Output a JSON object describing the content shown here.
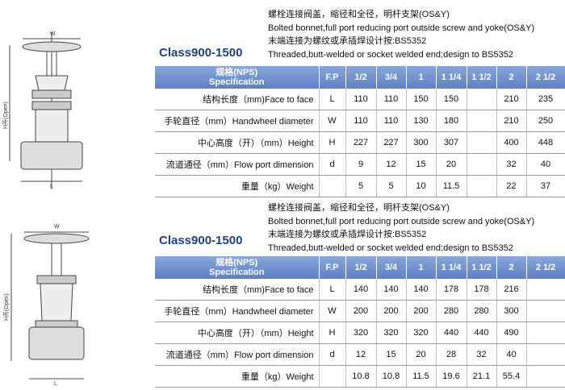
{
  "sections": [
    {
      "figure": {
        "width_label": "W",
        "height_label": "H开(Open)",
        "length_label": "L"
      },
      "description": [
        "螺栓连接阀盖，缩径和全径，明杆支架(OS&Y)",
        "Bolted bonnet,full port reducing port outside screw and yoke(OS&Y)",
        "末端连接为螺纹或承插焊设计按:BS5352",
        "Threaded,butt-welded or socket welded end;design to BS5352"
      ],
      "class_title": "Class900-1500",
      "table": {
        "spec_header": [
          "规格(NPS)",
          "Specification"
        ],
        "fp_header": "F.P",
        "sizes": [
          "1/2",
          "3/4",
          "1",
          "1 1/4",
          "1 1/2",
          "2",
          "2 1/2"
        ],
        "rows": [
          {
            "label": "结构长度（mm)Face to face",
            "symbol": "L",
            "values": [
              110,
              110,
              150,
              150,
              null,
              210,
              235
            ]
          },
          {
            "label": "手轮直径（mm）Handwheel diameter",
            "symbol": "W",
            "values": [
              110,
              110,
              130,
              180,
              null,
              210,
              250
            ]
          },
          {
            "label": "中心高度（开）（mm）Height",
            "symbol": "H",
            "values": [
              227,
              227,
              300,
              307,
              null,
              400,
              448
            ]
          },
          {
            "label": "流道通径（mm）Flow port dimension",
            "symbol": "d",
            "values": [
              9,
              12,
              15,
              20,
              null,
              32,
              40
            ]
          },
          {
            "label": "重量（kg）Weight",
            "symbol": null,
            "values": [
              5,
              5,
              10,
              11.5,
              null,
              22,
              37
            ]
          }
        ]
      }
    },
    {
      "figure": {
        "width_label": "W",
        "height_label": "H开(Open)",
        "length_label": "L"
      },
      "description": [
        "螺栓连接阀盖，缩径和全径，明杆支架(OS&Y)",
        "Bolted bonnet,full port reducing port outside screw and yoke(OS&Y)",
        "末端连接为螺纹或承插焊设计按:BS5352",
        "Threaded,butt-welded or socket welded end;design to BS5352"
      ],
      "class_title": "Class900-1500",
      "table": {
        "spec_header": [
          "规格(NPS)",
          "Specification"
        ],
        "fp_header": "F.P",
        "sizes": [
          "1/2",
          "3/4",
          "1",
          "1 1/4",
          "1 1/2",
          "2",
          "2 1/2"
        ],
        "rows": [
          {
            "label": "结构长度（mm)Face to face",
            "symbol": "L",
            "values": [
              140,
              140,
              140,
              178,
              178,
              216,
              null
            ]
          },
          {
            "label": "手轮直径（mm）Handwheel diameter",
            "symbol": "W",
            "values": [
              200,
              200,
              200,
              280,
              280,
              300,
              null
            ]
          },
          {
            "label": "中心高度（开）（mm）Height",
            "symbol": "H",
            "values": [
              320,
              320,
              320,
              440,
              440,
              490,
              null
            ]
          },
          {
            "label": "流道通径（mm）Flow port dimension",
            "symbol": "d",
            "values": [
              12,
              15,
              20,
              28,
              32,
              40,
              null
            ]
          },
          {
            "label": "重量（kg）Weight",
            "symbol": null,
            "values": [
              10.8,
              10.8,
              11.5,
              19.6,
              21.1,
              55.4,
              null
            ]
          }
        ]
      }
    }
  ]
}
